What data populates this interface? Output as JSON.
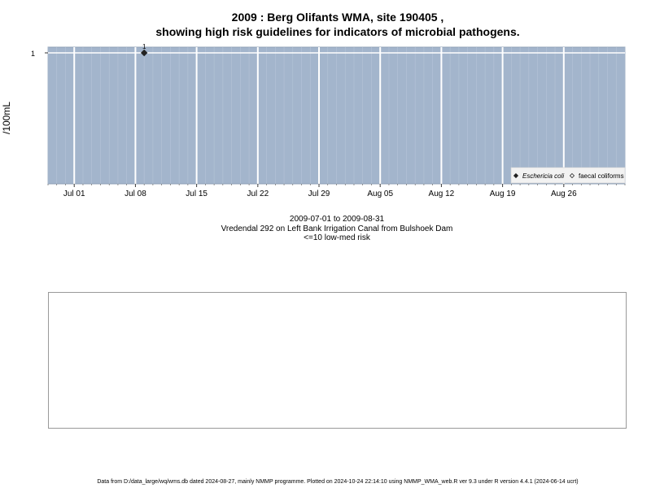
{
  "chart_title_line1": "2009 : Berg Olifants WMA, site 190405 ,",
  "chart_title_line2": "showing high risk guidelines for indicators of microbial pathogens.",
  "chart_data": {
    "type": "scatter",
    "ylabel": "/100mL",
    "x_ticks": [
      "Jul 01",
      "Jul 08",
      "Jul 15",
      "Jul 22",
      "Jul 29",
      "Aug 05",
      "Aug 12",
      "Aug 19",
      "Aug 26"
    ],
    "x_tick_dates": [
      "2009-07-01",
      "2009-07-08",
      "2009-07-15",
      "2009-07-22",
      "2009-07-29",
      "2009-08-05",
      "2009-08-12",
      "2009-08-19",
      "2009-08-26"
    ],
    "xlim": [
      "2009-06-28",
      "2009-09-02"
    ],
    "y_ticks": [
      1
    ],
    "series": [
      {
        "name": "Eschericia coli",
        "marker": "filled-diamond",
        "points": [
          {
            "x": "2009-07-09",
            "y": 1,
            "label": "1"
          }
        ]
      },
      {
        "name": "faecal coliforms",
        "marker": "open-diamond",
        "points": []
      }
    ],
    "legend_position": "bottom-right",
    "background_color": "#a3b5cc",
    "grid": true
  },
  "caption": {
    "date_range": "2009-07-01 to 2009-08-31",
    "site_description": "Vredendal 292 on Left Bank Irrigation Canal from Bulshoek Dam",
    "risk_note": "<=10 low-med risk"
  },
  "footer": "Data from D:/data_large/wq/wms.db dated 2024-08-27, mainly NMMP programme. Plotted on 2024-10-24 22:14:10 using NMMP_WMA_web.R ver 9.3 under R version 4.4.1 (2024-06-14 ucrt)"
}
